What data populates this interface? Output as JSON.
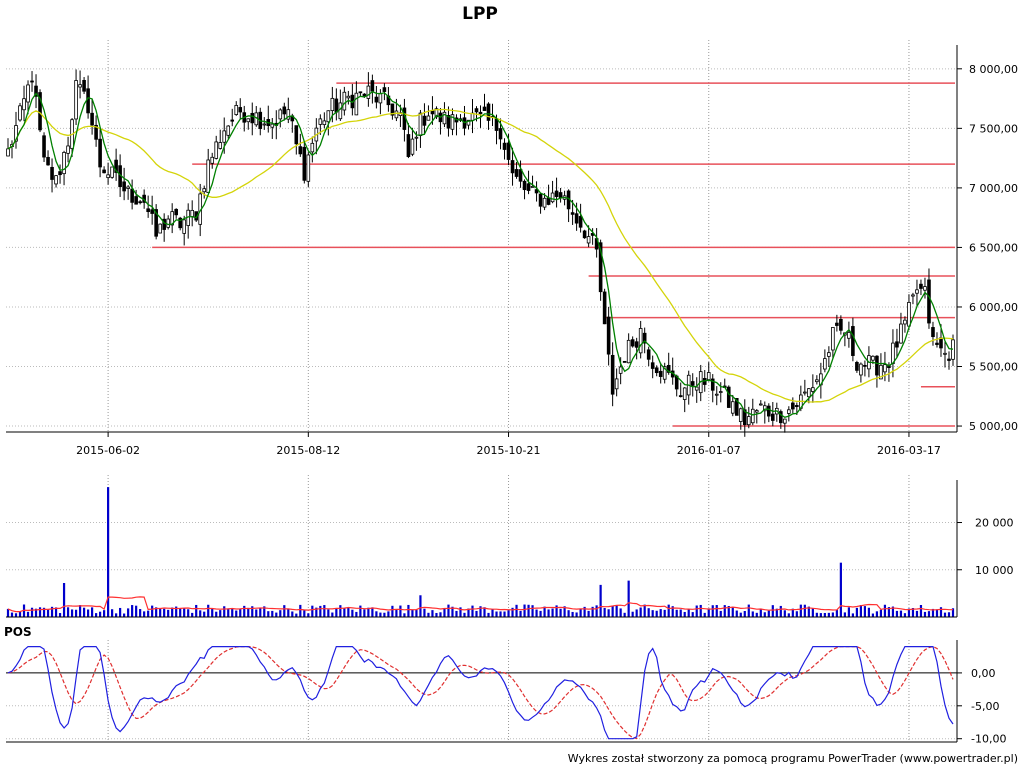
{
  "title": "LPP",
  "footer": "Wykres został stworzony za pomocą programu PowerTrader (www.powertrader.pl)",
  "colors": {
    "bull": "#ffffff",
    "bear": "#000000",
    "ma_short": "#008000",
    "ma_long": "#d4d40a",
    "hline": "#e8505a",
    "volume": "#0000cc",
    "volume_avg": "#ff3030",
    "pos_line": "#2020e0",
    "pos_signal": "#e03030"
  },
  "chart_data": [
    {
      "type": "candlestick",
      "name": "price",
      "title": "LPP",
      "ylim": [
        4950,
        8200
      ],
      "yticks": [
        5000,
        5500,
        6000,
        6500,
        7000,
        7500,
        8000
      ],
      "ytick_labels": [
        "5 000,00",
        "5 500,00",
        "6 000,00",
        "6 500,00",
        "7 000,00",
        "7 500,00",
        "8 000,00"
      ],
      "xticks": [
        "2015-06-02",
        "2015-08-12",
        "2015-10-21",
        "2016-01-07",
        "2016-03-17"
      ],
      "grid": true,
      "close_anchors": [
        [
          0,
          7300
        ],
        [
          3,
          7600
        ],
        [
          6,
          7950
        ],
        [
          9,
          7200
        ],
        [
          12,
          7050
        ],
        [
          15,
          7400
        ],
        [
          17,
          7850
        ],
        [
          20,
          7700
        ],
        [
          23,
          7200
        ],
        [
          26,
          7100
        ],
        [
          30,
          6950
        ],
        [
          34,
          6900
        ],
        [
          37,
          6600
        ],
        [
          40,
          6750
        ],
        [
          43,
          6700
        ],
        [
          47,
          6800
        ],
        [
          50,
          7200
        ],
        [
          54,
          7500
        ],
        [
          58,
          7650
        ],
        [
          62,
          7600
        ],
        [
          66,
          7550
        ],
        [
          70,
          7650
        ],
        [
          72,
          7350
        ],
        [
          74,
          7150
        ],
        [
          77,
          7500
        ],
        [
          80,
          7650
        ],
        [
          85,
          7750
        ],
        [
          90,
          7800
        ],
        [
          95,
          7700
        ],
        [
          98,
          7600
        ],
        [
          100,
          7250
        ],
        [
          102,
          7500
        ],
        [
          105,
          7650
        ],
        [
          110,
          7550
        ],
        [
          115,
          7600
        ],
        [
          120,
          7550
        ],
        [
          123,
          7500
        ],
        [
          126,
          7100
        ],
        [
          130,
          6950
        ],
        [
          134,
          6900
        ],
        [
          138,
          6950
        ],
        [
          141,
          6800
        ],
        [
          144,
          6650
        ],
        [
          147,
          6450
        ],
        [
          149,
          5800
        ],
        [
          151,
          5300
        ],
        [
          154,
          5600
        ],
        [
          158,
          5800
        ],
        [
          161,
          5550
        ],
        [
          164,
          5450
        ],
        [
          168,
          5300
        ],
        [
          172,
          5400
        ],
        [
          176,
          5350
        ],
        [
          180,
          5200
        ],
        [
          184,
          5050
        ],
        [
          188,
          5150
        ],
        [
          192,
          5100
        ],
        [
          196,
          5150
        ],
        [
          200,
          5300
        ],
        [
          203,
          5450
        ],
        [
          206,
          5750
        ],
        [
          209,
          5800
        ],
        [
          212,
          5550
        ],
        [
          216,
          5500
        ],
        [
          220,
          5550
        ],
        [
          224,
          5850
        ],
        [
          227,
          6150
        ],
        [
          229,
          6100
        ],
        [
          231,
          5700
        ],
        [
          234,
          5600
        ],
        [
          236,
          5650
        ]
      ],
      "horizontal_levels": [
        {
          "value": 7880,
          "from": "2015-08-20",
          "to": "end"
        },
        {
          "value": 7200,
          "from": "2015-07-01",
          "to": "end"
        },
        {
          "value": 6500,
          "from": "2015-06-11",
          "to": "end"
        },
        {
          "value": 6260,
          "from": "2015-11-25",
          "to": "end"
        },
        {
          "value": 5910,
          "from": "2015-12-01",
          "to": "end"
        },
        {
          "value": 5330,
          "from": "2016-03-21",
          "to": "end"
        },
        {
          "value": 5000,
          "from": "2015-12-17",
          "to": "end"
        }
      ],
      "series": [
        {
          "name": "",
          "kind": "moving_average",
          "period": 5
        },
        {
          "name": "",
          "kind": "moving_average",
          "period": 30
        }
      ]
    },
    {
      "type": "bar",
      "name": "volume",
      "ylim": [
        0,
        29000
      ],
      "yticks": [
        10000,
        20000
      ],
      "ytick_labels": [
        "10 000",
        "20 000"
      ],
      "grid": true,
      "spikes": [
        [
          14,
          7200
        ],
        [
          25,
          27500
        ],
        [
          103,
          4600
        ],
        [
          148,
          6800
        ],
        [
          155,
          7700
        ],
        [
          208,
          11500
        ]
      ],
      "base_level": 1800
    },
    {
      "type": "line",
      "name": "POS",
      "label": "POS",
      "ylim": [
        -10.5,
        5
      ],
      "yticks": [
        -10,
        -5,
        0
      ],
      "ytick_labels": [
        "-10,00",
        "-5,00",
        "0,00"
      ],
      "grid": true,
      "series": [
        {
          "name": "",
          "kind": "oscillator"
        },
        {
          "name": "",
          "kind": "signal"
        }
      ]
    }
  ]
}
